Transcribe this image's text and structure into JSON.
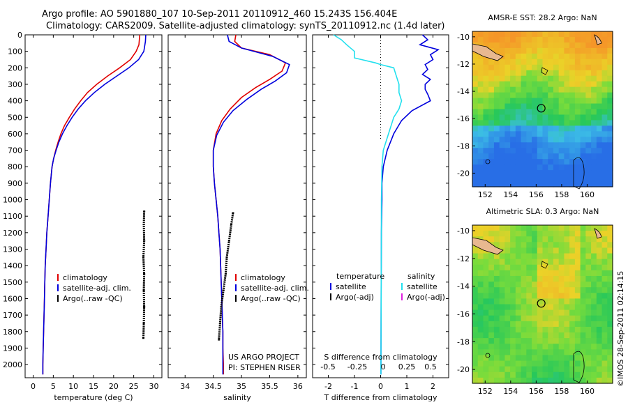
{
  "header": {
    "line1": "Argo profile: AO 5901880_107 10-Sep-2011 20110912_460 15.243S 156.404E",
    "line2": "Climatology: CARS2009. Satellite-adjusted climatology: synTS_20110912.nc (1.4d later)"
  },
  "side_stamp": "©IMOS 28-Sep-2011 02:14:15",
  "colors": {
    "climatology": "#e00000",
    "satellite": "#0000dd",
    "argo": "#000000",
    "salinity_sat": "#22e0ee",
    "argo_adj_sal": "#e020e0"
  },
  "chart_data": [
    {
      "type": "line",
      "id": "temperature",
      "xlabel": "temperature (deg C)",
      "xlim": [
        -2,
        32
      ],
      "xticks": [
        0,
        5,
        10,
        15,
        20,
        25,
        30
      ],
      "ylim": [
        0,
        2080
      ],
      "yticks": [
        0,
        100,
        200,
        300,
        400,
        500,
        600,
        700,
        800,
        900,
        1000,
        1100,
        1200,
        1300,
        1400,
        1500,
        1600,
        1700,
        1800,
        1900,
        2000
      ],
      "legend": [
        "climatology",
        "satellite-adj. clim.",
        "Argo(..raw -QC)"
      ],
      "series": [
        {
          "name": "climatology",
          "color": "#e00000",
          "points": [
            [
              26.5,
              0
            ],
            [
              26.3,
              60
            ],
            [
              25.6,
              100
            ],
            [
              24.2,
              150
            ],
            [
              21.5,
              200
            ],
            [
              18.5,
              250
            ],
            [
              15.8,
              300
            ],
            [
              13.5,
              350
            ],
            [
              11.8,
              400
            ],
            [
              10.3,
              450
            ],
            [
              9.0,
              500
            ],
            [
              7.8,
              550
            ],
            [
              6.9,
              600
            ],
            [
              6.2,
              650
            ],
            [
              5.6,
              700
            ],
            [
              5.1,
              750
            ],
            [
              4.7,
              800
            ],
            [
              4.3,
              900
            ],
            [
              4.0,
              1000
            ],
            [
              3.7,
              1100
            ],
            [
              3.4,
              1200
            ],
            [
              3.2,
              1300
            ],
            [
              3.0,
              1400
            ],
            [
              2.9,
              1500
            ],
            [
              2.8,
              1600
            ],
            [
              2.7,
              1700
            ],
            [
              2.6,
              1800
            ],
            [
              2.5,
              1900
            ],
            [
              2.4,
              2000
            ],
            [
              2.4,
              2060
            ]
          ]
        },
        {
          "name": "satellite-adj. clim.",
          "color": "#0000dd",
          "points": [
            [
              28.0,
              0
            ],
            [
              27.9,
              40
            ],
            [
              27.5,
              100
            ],
            [
              26.2,
              150
            ],
            [
              23.8,
              200
            ],
            [
              20.8,
              250
            ],
            [
              17.8,
              300
            ],
            [
              15.2,
              350
            ],
            [
              13.0,
              400
            ],
            [
              11.2,
              450
            ],
            [
              9.7,
              500
            ],
            [
              8.4,
              550
            ],
            [
              7.3,
              600
            ],
            [
              6.4,
              650
            ],
            [
              5.7,
              700
            ],
            [
              5.1,
              750
            ],
            [
              4.7,
              800
            ],
            [
              4.3,
              900
            ],
            [
              4.0,
              1000
            ],
            [
              3.7,
              1100
            ],
            [
              3.4,
              1200
            ],
            [
              3.2,
              1300
            ],
            [
              3.0,
              1400
            ],
            [
              2.9,
              1500
            ],
            [
              2.8,
              1600
            ],
            [
              2.7,
              1700
            ],
            [
              2.6,
              1800
            ],
            [
              2.5,
              1900
            ],
            [
              2.4,
              2000
            ],
            [
              2.4,
              2060
            ]
          ]
        },
        {
          "name": "Argo(..raw -QC)",
          "color": "#000000",
          "style": "dots",
          "points": [
            [
              27.6,
              1070
            ],
            [
              27.5,
              1150
            ],
            [
              27.6,
              1250
            ],
            [
              27.4,
              1350
            ],
            [
              27.6,
              1450
            ],
            [
              27.5,
              1550
            ],
            [
              27.6,
              1650
            ],
            [
              27.5,
              1750
            ],
            [
              27.4,
              1840
            ]
          ]
        }
      ]
    },
    {
      "type": "line",
      "id": "salinity",
      "xlabel": "salinity",
      "xlim": [
        33.7,
        36.15
      ],
      "xticks": [
        34,
        34.5,
        35,
        35.5,
        36
      ],
      "ylim": [
        0,
        2080
      ],
      "legend": [
        "climatology",
        "satellite-adj. clim.",
        "Argo(..raw -QC)"
      ],
      "annotation": [
        "US ARGO PROJECT",
        "PI: STEPHEN RISER"
      ],
      "series": [
        {
          "name": "climatology",
          "color": "#e00000",
          "points": [
            [
              34.9,
              0
            ],
            [
              34.88,
              40
            ],
            [
              35.0,
              80
            ],
            [
              35.5,
              120
            ],
            [
              35.78,
              170
            ],
            [
              35.72,
              220
            ],
            [
              35.5,
              270
            ],
            [
              35.25,
              320
            ],
            [
              35.0,
              380
            ],
            [
              34.8,
              450
            ],
            [
              34.65,
              520
            ],
            [
              34.55,
              600
            ],
            [
              34.5,
              700
            ],
            [
              34.5,
              800
            ],
            [
              34.52,
              900
            ],
            [
              34.55,
              1000
            ],
            [
              34.58,
              1100
            ],
            [
              34.6,
              1200
            ],
            [
              34.62,
              1300
            ],
            [
              34.63,
              1400
            ],
            [
              34.64,
              1500
            ],
            [
              34.65,
              1600
            ],
            [
              34.66,
              1700
            ],
            [
              34.67,
              1800
            ],
            [
              34.67,
              1900
            ],
            [
              34.68,
              2000
            ],
            [
              34.68,
              2060
            ]
          ]
        },
        {
          "name": "satellite-adj. clim.",
          "color": "#0000dd",
          "points": [
            [
              34.75,
              0
            ],
            [
              34.78,
              40
            ],
            [
              35.0,
              80
            ],
            [
              35.55,
              130
            ],
            [
              35.85,
              180
            ],
            [
              35.8,
              230
            ],
            [
              35.6,
              280
            ],
            [
              35.35,
              330
            ],
            [
              35.1,
              390
            ],
            [
              34.85,
              460
            ],
            [
              34.68,
              530
            ],
            [
              34.56,
              610
            ],
            [
              34.5,
              700
            ],
            [
              34.5,
              800
            ],
            [
              34.52,
              900
            ],
            [
              34.55,
              1000
            ],
            [
              34.58,
              1100
            ],
            [
              34.6,
              1200
            ],
            [
              34.62,
              1300
            ],
            [
              34.63,
              1400
            ],
            [
              34.64,
              1500
            ],
            [
              34.65,
              1600
            ],
            [
              34.66,
              1700
            ],
            [
              34.67,
              1800
            ],
            [
              34.67,
              1900
            ],
            [
              34.67,
              2000
            ],
            [
              34.67,
              2060
            ]
          ]
        },
        {
          "name": "Argo(..raw -QC)",
          "color": "#000000",
          "style": "dots",
          "points": [
            [
              34.85,
              1080
            ],
            [
              34.82,
              1150
            ],
            [
              34.78,
              1250
            ],
            [
              34.74,
              1350
            ],
            [
              34.72,
              1450
            ],
            [
              34.68,
              1550
            ],
            [
              34.64,
              1650
            ],
            [
              34.62,
              1750
            ],
            [
              34.6,
              1850
            ]
          ]
        }
      ]
    },
    {
      "type": "line",
      "id": "difference",
      "xlabel": "T difference from climatology",
      "xlabel2": "S difference from climatology",
      "xlim": [
        -2.6,
        2.6
      ],
      "xticks": [
        -2,
        -1,
        0,
        1,
        2
      ],
      "xticks_top_labels": [
        "-0.5",
        "-0.25",
        "0",
        "0.25",
        "0.5"
      ],
      "ylim": [
        0,
        2080
      ],
      "legend_headers": [
        "temperature",
        "salinity"
      ],
      "legend_t": [
        "satellite",
        "Argo(-adj)"
      ],
      "legend_s": [
        "satellite",
        "Argo(-adj)"
      ],
      "series": [
        {
          "name": "temperature satellite",
          "color": "#0000dd",
          "points": [
            [
              1.6,
              0
            ],
            [
              1.8,
              30
            ],
            [
              1.5,
              60
            ],
            [
              2.2,
              90
            ],
            [
              1.9,
              120
            ],
            [
              2.0,
              150
            ],
            [
              1.7,
              180
            ],
            [
              1.8,
              210
            ],
            [
              1.6,
              240
            ],
            [
              1.9,
              270
            ],
            [
              1.7,
              300
            ],
            [
              1.7,
              330
            ],
            [
              1.8,
              360
            ],
            [
              1.9,
              400
            ],
            [
              1.2,
              460
            ],
            [
              0.8,
              520
            ],
            [
              0.5,
              600
            ],
            [
              0.25,
              700
            ],
            [
              0.1,
              800
            ],
            [
              0.05,
              900
            ],
            [
              0.05,
              1000
            ],
            [
              0.03,
              1200
            ],
            [
              0.02,
              1500
            ],
            [
              0.01,
              2060
            ]
          ]
        },
        {
          "name": "salinity satellite",
          "color": "#22e0ee",
          "points": [
            [
              -1.8,
              0
            ],
            [
              -1.5,
              30
            ],
            [
              -1.3,
              60
            ],
            [
              -1.0,
              100
            ],
            [
              -1.0,
              140
            ],
            [
              -0.2,
              170
            ],
            [
              0.0,
              180
            ],
            [
              0.5,
              200
            ],
            [
              0.6,
              250
            ],
            [
              0.7,
              300
            ],
            [
              0.7,
              350
            ],
            [
              0.8,
              400
            ],
            [
              0.7,
              450
            ],
            [
              0.5,
              500
            ],
            [
              0.3,
              600
            ],
            [
              0.1,
              700
            ],
            [
              0.05,
              800
            ],
            [
              0.03,
              1000
            ],
            [
              0.02,
              1500
            ],
            [
              0.01,
              2060
            ]
          ]
        }
      ]
    },
    {
      "type": "heatmap",
      "id": "sst-map",
      "title": "AMSR-E SST: 28.2 Argo: NaN",
      "xticks": [
        152,
        154,
        156,
        158,
        160
      ],
      "yticks": [
        -10,
        -12,
        -14,
        -16,
        -18,
        -20
      ],
      "xlim": [
        151,
        162
      ],
      "ylim": [
        -21,
        -9.6
      ],
      "marker": [
        156.4,
        -15.24
      ]
    },
    {
      "type": "heatmap",
      "id": "sla-map",
      "title": "Altimetric SLA: 0.3 Argo: NaN",
      "xticks": [
        152,
        154,
        156,
        158,
        160
      ],
      "yticks": [
        -10,
        -12,
        -14,
        -16,
        -18,
        -20
      ],
      "xlim": [
        151,
        162
      ],
      "ylim": [
        -21,
        -9.6
      ],
      "marker": [
        156.4,
        -15.24
      ]
    }
  ]
}
